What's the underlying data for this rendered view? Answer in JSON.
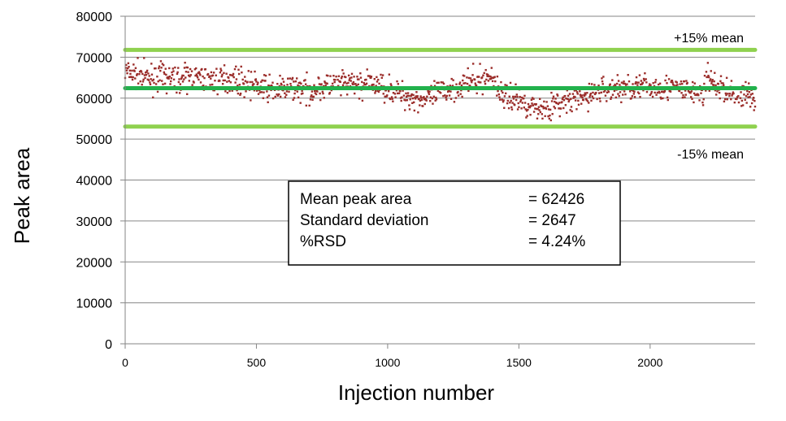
{
  "chart_data": {
    "type": "scatter",
    "xlabel": "Injection number",
    "ylabel": "Peak area",
    "xlim": [
      0,
      2400
    ],
    "ylim": [
      0,
      80000
    ],
    "x_ticks": [
      0,
      500,
      1000,
      1500,
      2000
    ],
    "y_ticks": [
      0,
      10000,
      20000,
      30000,
      40000,
      50000,
      60000,
      70000,
      80000
    ],
    "grid": true,
    "point_color": "#9b2d2a",
    "reference_lines": [
      {
        "label": "+15% mean",
        "value": 71790,
        "color": "#8fd14f"
      },
      {
        "label": "",
        "value": 62426,
        "color": "#22b14c"
      },
      {
        "label": "-15% mean",
        "value": 53062,
        "color": "#8fd14f"
      }
    ],
    "annotation_box": {
      "rows": [
        {
          "label": "Mean peak area",
          "value": "= 62426"
        },
        {
          "label": "Standard deviation",
          "value": "= 2647"
        },
        {
          "label": "%RSD",
          "value": "= 4.24%"
        }
      ]
    },
    "series": [
      {
        "x": [
          0,
          50,
          100,
          150,
          200,
          250,
          300,
          350,
          400,
          450,
          500,
          550,
          600,
          650,
          700,
          750,
          800,
          850,
          900,
          950,
          1000,
          1050,
          1100,
          1150,
          1200,
          1250,
          1300,
          1350,
          1400,
          1430,
          1450,
          1500,
          1550,
          1600,
          1650,
          1700,
          1750,
          1800,
          1850,
          1900,
          1950,
          2000,
          2050,
          2100,
          2150,
          2200,
          2220,
          2250,
          2300,
          2350,
          2400
        ],
        "y": [
          66500,
          65500,
          64800,
          65200,
          64500,
          65300,
          64600,
          64200,
          65000,
          63800,
          63000,
          62200,
          62000,
          62800,
          61700,
          62800,
          63200,
          63600,
          63300,
          63400,
          62500,
          61000,
          60000,
          59600,
          61500,
          62600,
          63500,
          64300,
          65500,
          61000,
          60500,
          59500,
          58000,
          57300,
          58500,
          59500,
          60000,
          61800,
          62300,
          62500,
          62800,
          62500,
          62800,
          62300,
          61800,
          61000,
          65000,
          63000,
          61500,
          61000,
          60000
        ]
      }
    ]
  }
}
